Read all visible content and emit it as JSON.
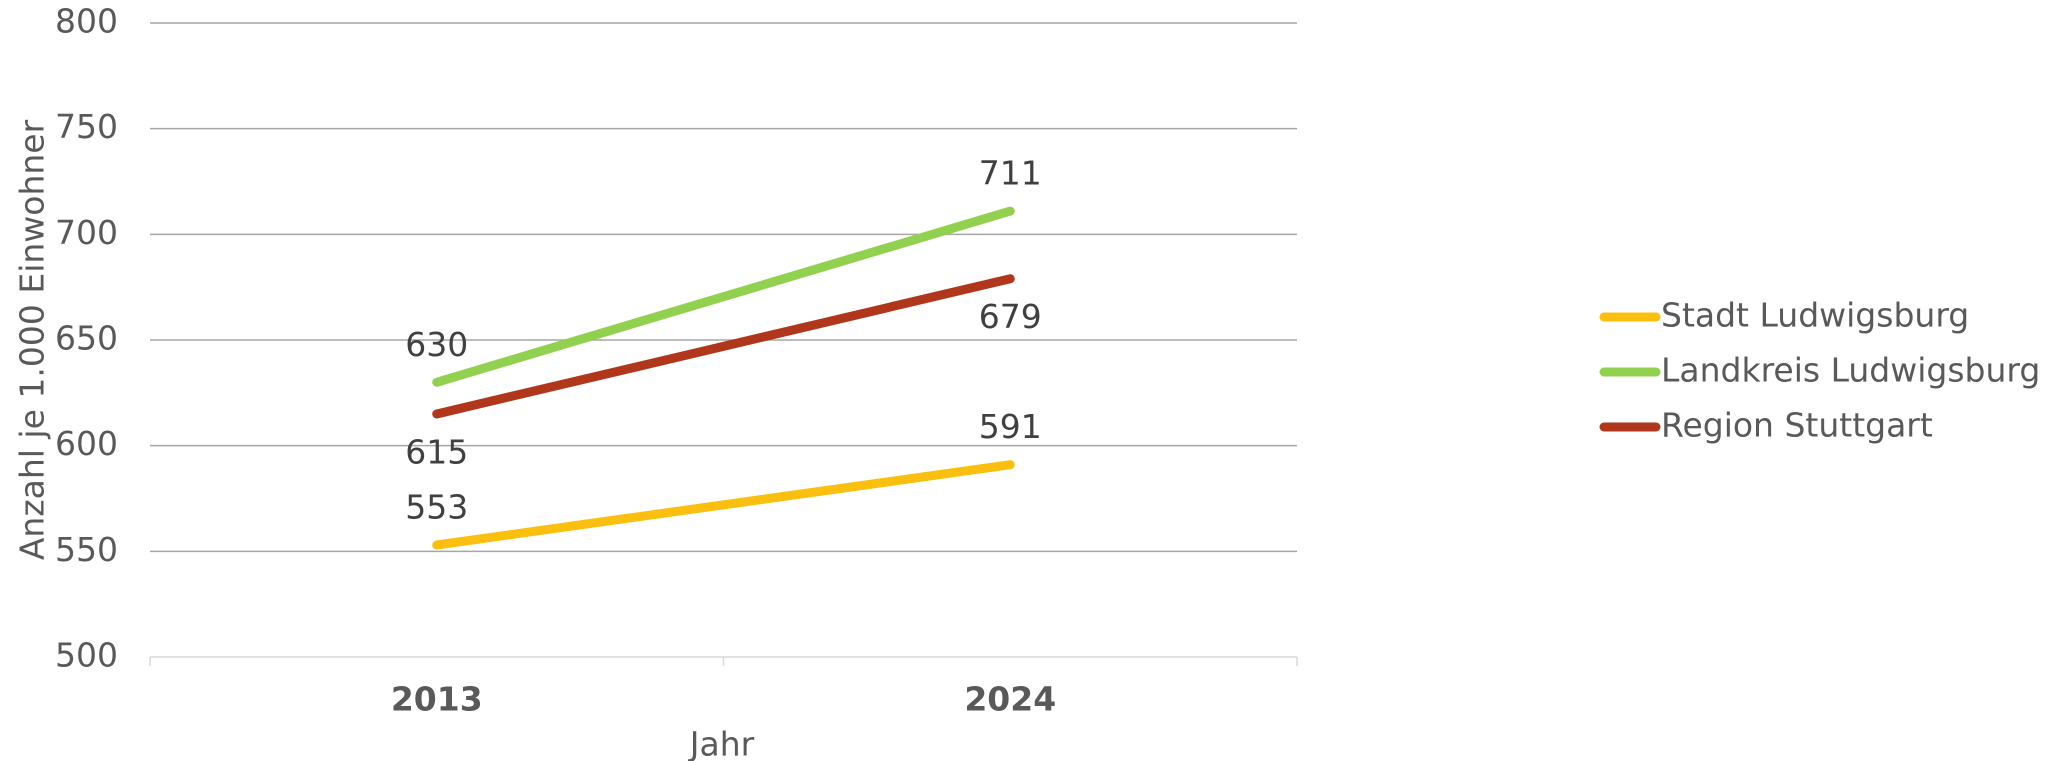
{
  "chart_data": {
    "type": "line",
    "x_label": "Jahr",
    "y_label": "Anzahl je 1.000 Einwohner",
    "categories": [
      "2013",
      "2024"
    ],
    "series": [
      {
        "name": "Stadt Ludwigsburg",
        "color": "#fbbf0f",
        "values": [
          553,
          591
        ]
      },
      {
        "name": "Landkreis Ludwigsburg",
        "color": "#92d050",
        "values": [
          630,
          711
        ]
      },
      {
        "name": "Region Stuttgart",
        "color": "#b0371b",
        "values": [
          615,
          679
        ]
      }
    ],
    "ylim": [
      500,
      800
    ],
    "yticks": [
      500,
      550,
      600,
      650,
      700,
      750,
      800
    ],
    "grid": true,
    "legend": "right"
  }
}
